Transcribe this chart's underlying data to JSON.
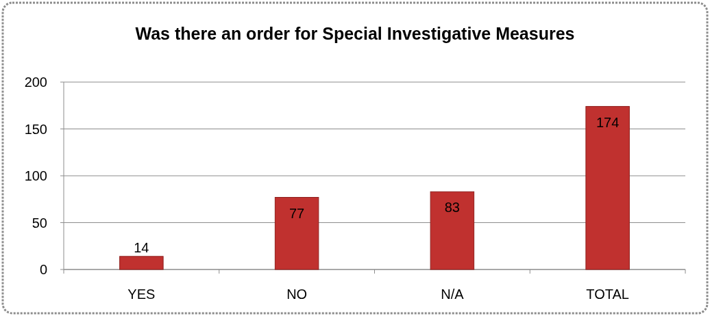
{
  "chart_data": {
    "type": "bar",
    "title": "Was there an order for Special Investigative Measures",
    "categories": [
      "YES",
      "NO",
      "N/A",
      "TOTAL"
    ],
    "values": [
      14,
      77,
      83,
      174
    ],
    "color": "#c0312f",
    "ylim": [
      0,
      200
    ],
    "yticks": [
      0,
      50,
      100,
      150,
      200
    ],
    "grid": "y",
    "data_labels": true
  }
}
